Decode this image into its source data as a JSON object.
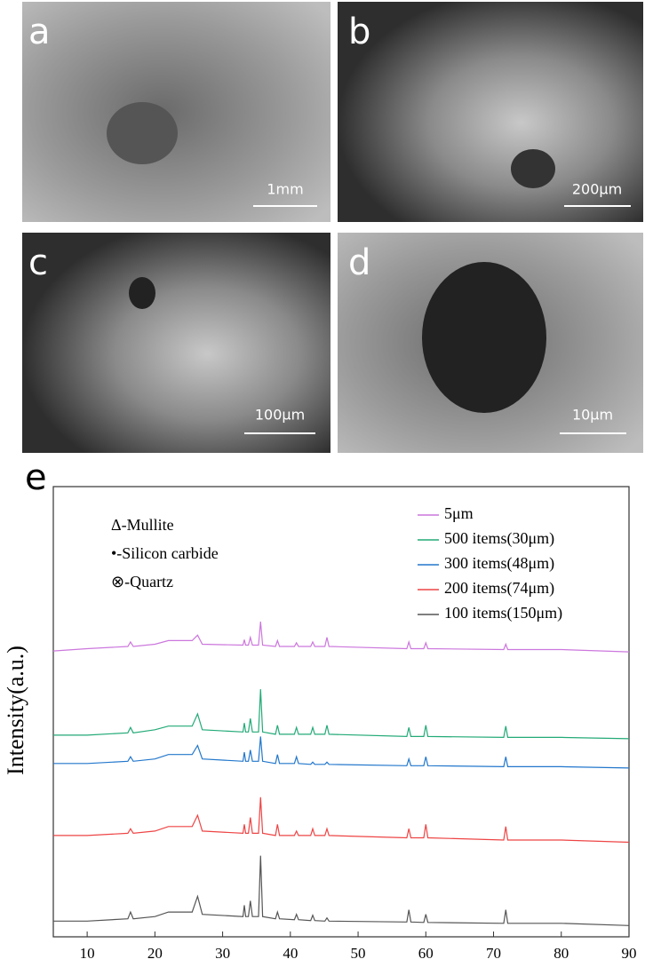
{
  "panels": [
    {
      "label": "a",
      "scale_bar": "1mm"
    },
    {
      "label": "b",
      "scale_bar": "200μm"
    },
    {
      "label": "c",
      "scale_bar": "100μm"
    },
    {
      "label": "d",
      "scale_bar": "10μm"
    }
  ],
  "chart_data": {
    "type": "line",
    "panel_label": "e",
    "ylabel": "Intensity(a.u.)",
    "annotations": [
      "Δ-Mullite",
      "•-Silicon carbide",
      "⊗-Quartz"
    ],
    "x": [
      5,
      10,
      16.0,
      16.4,
      16.8,
      20,
      22,
      25.5,
      26.3,
      27,
      33.0,
      33.2,
      33.4,
      33.8,
      34.1,
      34.4,
      35.3,
      35.6,
      35.9,
      37.8,
      38.1,
      38.4,
      40.6,
      40.9,
      41.2,
      43.0,
      43.3,
      43.6,
      45.1,
      45.4,
      45.7,
      57.2,
      57.5,
      57.8,
      59.7,
      60.0,
      60.3,
      71.5,
      71.8,
      72.1,
      80,
      90
    ],
    "series": [
      {
        "name": "5μm",
        "color": "#cc77dd",
        "values": [
          63.5,
          64,
          64.5,
          65.5,
          64.5,
          65,
          65.8,
          65.8,
          67,
          65,
          64.8,
          66,
          64.8,
          64.8,
          66.5,
          64.8,
          64.8,
          70,
          64.8,
          64.5,
          65.8,
          64.5,
          64.5,
          65.3,
          64.5,
          64.5,
          65.5,
          64.5,
          64.5,
          66.5,
          64.5,
          64,
          65.5,
          64,
          64,
          65.3,
          64,
          63.8,
          65,
          63.8,
          63.8,
          63.3
        ]
      },
      {
        "name": "500 items(30μm)",
        "color": "#22aa77",
        "values": [
          44.8,
          44.8,
          45.3,
          46.5,
          45.3,
          46,
          46.8,
          46.8,
          49.5,
          46,
          45.5,
          47.5,
          45.5,
          45.5,
          48.5,
          45.5,
          45.5,
          55,
          45.5,
          45,
          47,
          45,
          45,
          46.5,
          45,
          45,
          46.5,
          45,
          45,
          47,
          45,
          44.5,
          46.5,
          44.5,
          44.5,
          47,
          44.5,
          44.3,
          46.8,
          44.3,
          44.3,
          44
        ]
      },
      {
        "name": "300 items(48μm)",
        "color": "#2277cc",
        "values": [
          38.5,
          38.5,
          39,
          40,
          39,
          39.5,
          40.5,
          40.5,
          42.5,
          39.5,
          39,
          41,
          39,
          39,
          41.5,
          39,
          39,
          44.5,
          39,
          38.5,
          40.5,
          38.5,
          38.5,
          40,
          38.5,
          38.3,
          38.8,
          38.3,
          38.3,
          38.8,
          38.3,
          38,
          39.5,
          38,
          38,
          40,
          38,
          37.8,
          40,
          37.8,
          37.8,
          37.5
        ]
      },
      {
        "name": "200 items(74μm)",
        "color": "#ee4444",
        "values": [
          22.5,
          22.5,
          23,
          24,
          23,
          23.5,
          24.5,
          24.5,
          27,
          23.5,
          23,
          25,
          23,
          23,
          26.5,
          23,
          23,
          31,
          23,
          22.5,
          25,
          22.5,
          22.5,
          23.5,
          22.5,
          22.5,
          24,
          22.5,
          22.5,
          24,
          22.5,
          22,
          24,
          22,
          22,
          25,
          22,
          21.5,
          24.5,
          21.5,
          21.5,
          21
        ]
      },
      {
        "name": "100 items(150μm)",
        "color": "#555555",
        "values": [
          3.5,
          3.5,
          4,
          5.5,
          4,
          4.5,
          5.5,
          5.5,
          9,
          5,
          4.5,
          7,
          4.5,
          4.5,
          8,
          4.5,
          4.5,
          18,
          4.5,
          4,
          5.5,
          4,
          3.8,
          5,
          3.8,
          3.6,
          4.8,
          3.6,
          3.5,
          4.2,
          3.5,
          3.3,
          6,
          3.3,
          3.2,
          5,
          3.2,
          3,
          6,
          3,
          3,
          2.5
        ]
      }
    ],
    "xlim": [
      5,
      90
    ],
    "xticks": [
      10,
      20,
      30,
      40,
      50,
      60,
      70,
      80,
      90
    ],
    "ylim": [
      0,
      100
    ]
  }
}
